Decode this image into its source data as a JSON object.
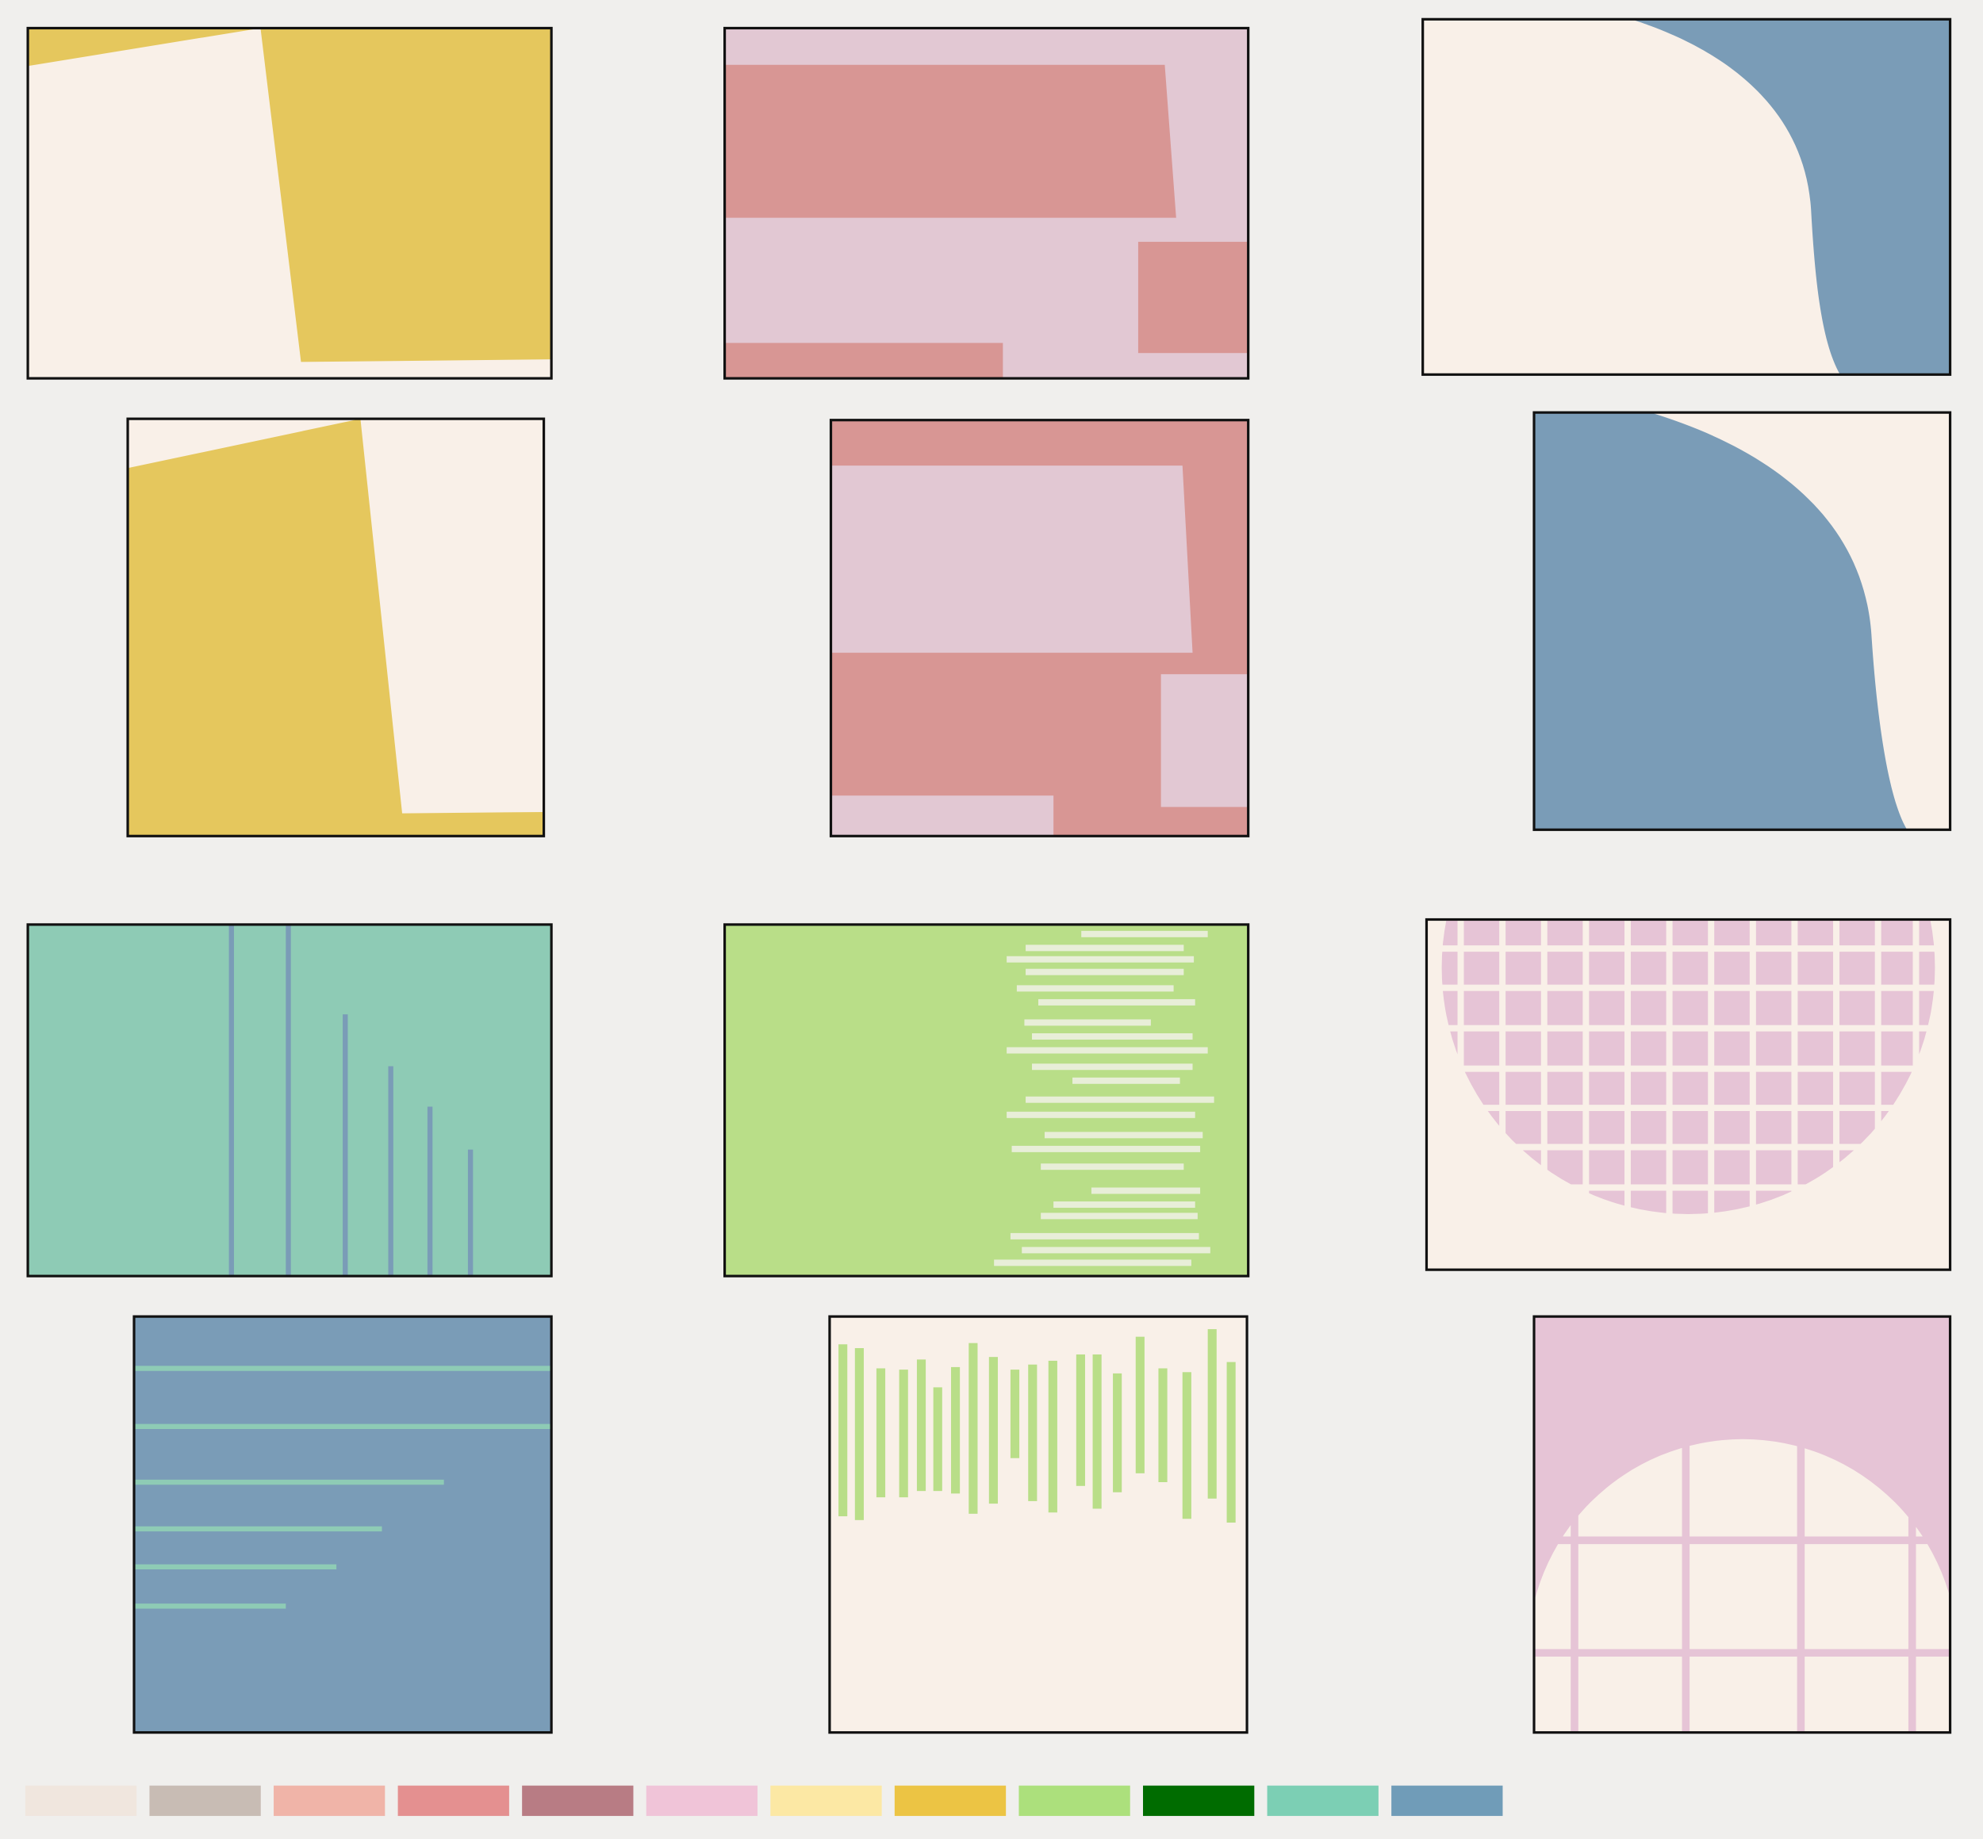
{
  "palette": [
    "#f0e6de",
    "#c8bcb4",
    "#f0b4a8",
    "#e49090",
    "#b87c84",
    "#f0c4d8",
    "#fce8a4",
    "#ecc444",
    "#ace07c",
    "#006c00",
    "#7ccfb4",
    "#709cb8"
  ]
}
